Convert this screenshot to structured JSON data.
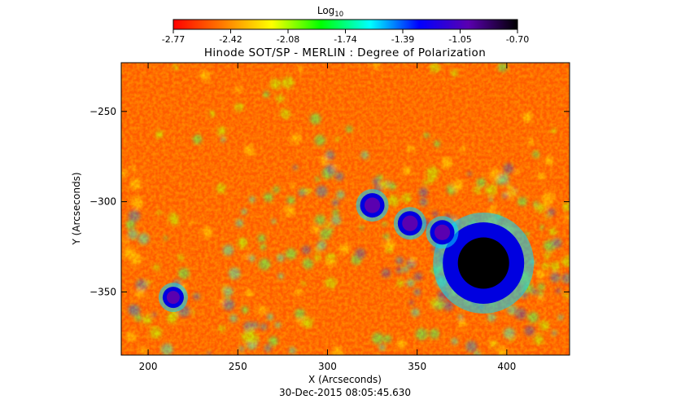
{
  "chart_data": {
    "type": "heatmap",
    "title": "Hinode SOT/SP - MERLIN : Degree of Polarization",
    "subtitle": "30-Dec-2015 08:05:45.630",
    "xlabel": "X (Arcseconds)",
    "ylabel": "Y (Arcseconds)",
    "xlim": [
      185,
      435
    ],
    "ylim": [
      -385,
      -223
    ],
    "x_ticks": [
      200,
      250,
      300,
      350,
      400
    ],
    "y_ticks": [
      -250,
      -300,
      -350
    ],
    "colorbar": {
      "label": "Log",
      "label_subscript": "10",
      "range": [
        -2.77,
        -0.7
      ],
      "ticks": [
        "-2.77",
        "-2.42",
        "-2.08",
        "-1.74",
        "-1.39",
        "-1.05",
        "-0.70"
      ],
      "colormap": [
        "#ff0000",
        "#ff7a00",
        "#ffff00",
        "#00ff00",
        "#00ffff",
        "#0000ff",
        "#5a00b0",
        "#000000"
      ]
    },
    "features": [
      {
        "name": "large sunspot",
        "x": 387,
        "y": -334,
        "value": -0.7
      },
      {
        "name": "pore",
        "x": 346,
        "y": -312,
        "value": -0.85
      },
      {
        "name": "pore",
        "x": 364,
        "y": -317,
        "value": -0.9
      },
      {
        "name": "pore",
        "x": 325,
        "y": -302,
        "value": -1.0
      },
      {
        "name": "pore",
        "x": 214,
        "y": -353,
        "value": -1.0
      }
    ]
  }
}
